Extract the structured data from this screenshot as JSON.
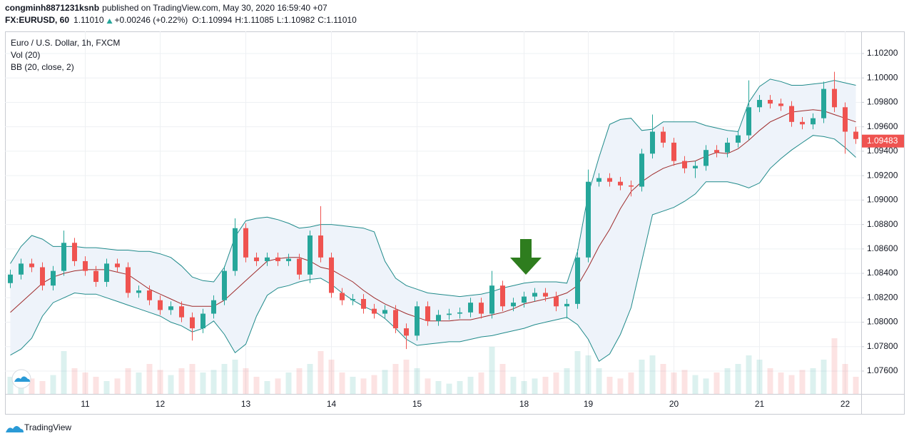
{
  "header": {
    "author": "congminh8871231ksnb",
    "published": "published on TradingView.com, May 30, 2020 16:59:40 +07",
    "symbol": "FX:EURUSD, 60",
    "last": "1.11010",
    "change": "+0.00246 (+0.22%)",
    "o_label": "O:",
    "o": "1.10994",
    "h_label": "H:",
    "h": "1.11085",
    "l_label": "L:",
    "l": "1.10982",
    "c_label": "C:",
    "c": "1.11010"
  },
  "chart_data": {
    "type": "candlestick",
    "title": "Euro / U.S. Dollar, 1h, FXCM",
    "categories": [
      null,
      null,
      null,
      null,
      null,
      null,
      null,
      "11",
      null,
      null,
      null,
      null,
      null,
      null,
      "12",
      null,
      null,
      null,
      null,
      null,
      null,
      null,
      "13",
      null,
      null,
      null,
      null,
      null,
      null,
      null,
      "14",
      null,
      null,
      null,
      null,
      null,
      null,
      null,
      "15",
      null,
      null,
      null,
      null,
      null,
      null,
      null,
      null,
      null,
      "18",
      null,
      null,
      null,
      null,
      null,
      "19",
      null,
      null,
      null,
      null,
      null,
      null,
      null,
      "20",
      null,
      null,
      null,
      null,
      null,
      null,
      null,
      "21",
      null,
      null,
      null,
      null,
      null,
      null,
      null,
      "22",
      null
    ],
    "open": [
      1.0832,
      1.0839,
      1.0848,
      1.0845,
      1.083,
      1.0842,
      1.0865,
      1.085,
      1.0842,
      1.0833,
      1.0848,
      1.0845,
      1.0824,
      1.0826,
      1.0818,
      1.081,
      1.0813,
      1.0804,
      1.0795,
      1.0807,
      1.0818,
      1.0842,
      1.0877,
      1.0853,
      1.085,
      1.0853,
      1.085,
      1.0852,
      1.0839,
      1.0871,
      1.0853,
      1.0824,
      1.0818,
      1.0819,
      1.0811,
      1.0807,
      1.081,
      1.0795,
      1.0789,
      1.0813,
      1.0801,
      1.0806,
      1.0807,
      1.0808,
      1.0816,
      1.0807,
      1.083,
      1.0813,
      1.0816,
      1.0821,
      1.0824,
      1.0821,
      1.0813,
      1.0815,
      1.0853,
      1.0915,
      1.0918,
      1.0915,
      1.0912,
      1.0911,
      1.0938,
      1.0956,
      1.0947,
      1.0932,
      1.0926,
      1.0928,
      1.0941,
      1.0939,
      1.0947,
      1.0953,
      1.0976,
      1.0982,
      1.0979,
      1.0977,
      1.0964,
      1.0962,
      1.0967,
      1.0991,
      1.0976,
      1.0956
    ],
    "high": [
      1.0843,
      1.0852,
      1.0852,
      1.0849,
      1.0846,
      1.0875,
      1.0869,
      1.0854,
      1.0846,
      1.0852,
      1.0852,
      1.0849,
      1.083,
      1.083,
      1.0822,
      1.0817,
      1.0817,
      1.0808,
      1.0811,
      1.0822,
      1.0846,
      1.0885,
      1.0881,
      1.0857,
      1.0857,
      1.0857,
      1.0856,
      1.0856,
      1.0875,
      1.0895,
      1.0857,
      1.0828,
      1.0823,
      1.0823,
      1.0815,
      1.0814,
      1.0814,
      1.0799,
      1.0817,
      1.0817,
      1.081,
      1.0811,
      1.0812,
      1.082,
      1.082,
      1.0842,
      1.0834,
      1.082,
      1.0825,
      1.0828,
      1.0828,
      1.0825,
      1.0819,
      1.086,
      1.0925,
      1.0922,
      1.0922,
      1.0919,
      1.0916,
      1.0942,
      1.097,
      1.096,
      1.0951,
      1.0936,
      1.0932,
      1.0945,
      1.0945,
      1.0951,
      1.0957,
      1.0998,
      1.0986,
      1.0986,
      1.0983,
      1.0981,
      1.0968,
      1.0971,
      1.0997,
      1.1005,
      1.098,
      1.096
    ],
    "low": [
      1.0828,
      1.0835,
      1.0841,
      1.0826,
      1.0826,
      1.0838,
      1.0846,
      1.0838,
      1.0829,
      1.0829,
      1.0841,
      1.082,
      1.082,
      1.0814,
      1.0806,
      1.0806,
      1.08,
      1.0785,
      1.0791,
      1.0803,
      1.0814,
      1.0838,
      1.0849,
      1.0846,
      1.0846,
      1.0846,
      1.0846,
      1.0835,
      1.0832,
      1.0849,
      1.082,
      1.0814,
      1.0814,
      1.0807,
      1.0803,
      1.0803,
      1.0791,
      1.0778,
      1.0785,
      1.0797,
      1.0797,
      1.0802,
      1.0803,
      1.0804,
      1.0803,
      1.0803,
      1.0809,
      1.0809,
      1.0812,
      1.0817,
      1.0817,
      1.0809,
      1.0803,
      1.0811,
      1.0849,
      1.0911,
      1.0911,
      1.0908,
      1.0903,
      1.0907,
      1.0934,
      1.0943,
      1.0928,
      1.0922,
      1.0918,
      1.0924,
      1.0935,
      1.0935,
      1.0943,
      1.0949,
      1.0972,
      1.0975,
      1.0973,
      1.096,
      1.0958,
      1.0958,
      1.0963,
      1.0972,
      1.0938,
      1.0946
    ],
    "close": [
      1.0839,
      1.0848,
      1.0845,
      1.083,
      1.0842,
      1.0865,
      1.085,
      1.0842,
      1.0833,
      1.0848,
      1.0845,
      1.0824,
      1.0826,
      1.0818,
      1.081,
      1.0813,
      1.0804,
      1.0795,
      1.0807,
      1.0818,
      1.0842,
      1.0877,
      1.0853,
      1.085,
      1.0853,
      1.085,
      1.0852,
      1.0839,
      1.0871,
      1.0853,
      1.0824,
      1.0818,
      1.0819,
      1.0811,
      1.0807,
      1.081,
      1.0795,
      1.0789,
      1.0813,
      1.0801,
      1.0806,
      1.0807,
      1.0808,
      1.0816,
      1.0807,
      1.083,
      1.0813,
      1.0816,
      1.0821,
      1.0824,
      1.0821,
      1.0813,
      1.0815,
      1.0853,
      1.0915,
      1.0918,
      1.0915,
      1.0912,
      1.0911,
      1.0938,
      1.0956,
      1.0947,
      1.0932,
      1.0926,
      1.0928,
      1.0941,
      1.0939,
      1.0947,
      1.0953,
      1.0976,
      1.0982,
      1.0979,
      1.0977,
      1.0964,
      1.0962,
      1.0967,
      1.0991,
      1.0976,
      1.0956,
      1.095
    ],
    "up_color": "#26a69a",
    "down_color": "#ef5350",
    "bollinger": {
      "name": "BB (20, close, 2)",
      "band_color": "#1f8a8a",
      "basis_color": "#9e2b2b",
      "fill": "#eef3fa",
      "upper": [
        1.0848,
        1.0862,
        1.0871,
        1.0868,
        1.0862,
        1.0862,
        1.0862,
        1.0861,
        1.0861,
        1.086,
        1.0859,
        1.0859,
        1.0858,
        1.0858,
        1.0856,
        1.0853,
        1.0846,
        1.0837,
        1.0834,
        1.0833,
        1.0845,
        1.087,
        1.0883,
        1.0885,
        1.0886,
        1.0884,
        1.0881,
        1.0877,
        1.0878,
        1.088,
        1.088,
        1.0879,
        1.0878,
        1.0877,
        1.0874,
        1.085,
        1.0836,
        1.083,
        1.0827,
        1.0824,
        1.0823,
        1.0822,
        1.0821,
        1.0822,
        1.0823,
        1.0825,
        1.0828,
        1.083,
        1.0832,
        1.0833,
        1.0833,
        1.0833,
        1.0832,
        1.0858,
        1.0905,
        1.0935,
        1.0962,
        1.0966,
        1.0967,
        1.0957,
        1.0958,
        1.0964,
        1.0964,
        1.0964,
        1.0964,
        1.0961,
        1.0959,
        1.0957,
        1.0956,
        1.098,
        1.0993,
        1.0999,
        1.0997,
        1.0994,
        1.0994,
        1.0995,
        1.0996,
        1.0998,
        1.0996,
        1.0994
      ],
      "basis": [
        1.0808,
        1.0816,
        1.0824,
        1.0832,
        1.0837,
        1.084,
        1.0842,
        1.0843,
        1.0843,
        1.0843,
        1.0841,
        1.0839,
        1.0833,
        1.0827,
        1.0823,
        1.0819,
        1.0815,
        1.0813,
        1.0813,
        1.0813,
        1.0818,
        1.0826,
        1.0834,
        1.0842,
        1.085,
        1.0852,
        1.0853,
        1.0853,
        1.085,
        1.0845,
        1.0843,
        1.0838,
        1.0833,
        1.0826,
        1.082,
        1.0815,
        1.0811,
        1.0807,
        1.0804,
        1.0801,
        1.0801,
        1.0801,
        1.0802,
        1.0802,
        1.0804,
        1.0806,
        1.0808,
        1.0811,
        1.0815,
        1.0817,
        1.0819,
        1.0821,
        1.0824,
        1.083,
        1.0845,
        1.0862,
        1.0876,
        1.0893,
        1.0907,
        1.0915,
        1.0921,
        1.0926,
        1.0929,
        1.0931,
        1.0932,
        1.0936,
        1.0939,
        1.0938,
        1.0942,
        1.0949,
        1.0957,
        1.0964,
        1.0968,
        1.0972,
        1.0973,
        1.0974,
        1.0973,
        1.097,
        1.0967,
        1.0964
      ],
      "lower": [
        1.0773,
        1.0778,
        1.0787,
        1.0805,
        1.0816,
        1.082,
        1.0824,
        1.0823,
        1.0823,
        1.082,
        1.0817,
        1.0814,
        1.0811,
        1.0808,
        1.0805,
        1.08,
        1.0797,
        1.0792,
        1.0795,
        1.0801,
        1.079,
        1.0775,
        1.0782,
        1.0805,
        1.0822,
        1.0828,
        1.083,
        1.0833,
        1.0835,
        1.0836,
        1.0831,
        1.0824,
        1.0818,
        1.0813,
        1.0809,
        1.0803,
        1.0795,
        1.0786,
        1.0781,
        1.0782,
        1.0783,
        1.0784,
        1.0784,
        1.0786,
        1.0788,
        1.0789,
        1.0791,
        1.0793,
        1.0795,
        1.0798,
        1.08,
        1.0802,
        1.0804,
        1.0798,
        1.0786,
        1.0768,
        1.0774,
        1.079,
        1.0812,
        1.085,
        1.0888,
        1.0891,
        1.0894,
        1.0899,
        1.0905,
        1.0915,
        1.0915,
        1.0915,
        1.0913,
        1.091,
        1.0914,
        1.0926,
        1.0934,
        1.0941,
        1.0947,
        1.0953,
        1.0952,
        1.095,
        1.0943,
        1.0935
      ]
    },
    "volume": {
      "name": "Vol (20)",
      "ylim": [
        0,
        100
      ],
      "values": [
        20,
        25,
        18,
        15,
        22,
        50,
        30,
        25,
        20,
        15,
        18,
        30,
        25,
        35,
        28,
        22,
        30,
        35,
        25,
        28,
        35,
        40,
        30,
        20,
        15,
        18,
        25,
        30,
        35,
        50,
        40,
        25,
        20,
        18,
        22,
        28,
        35,
        40,
        30,
        18,
        15,
        12,
        15,
        20,
        25,
        55,
        35,
        20,
        15,
        18,
        20,
        25,
        30,
        50,
        45,
        30,
        20,
        18,
        25,
        40,
        45,
        35,
        25,
        28,
        22,
        18,
        25,
        30,
        35,
        45,
        40,
        30,
        25,
        22,
        28,
        30,
        40,
        65,
        35,
        20
      ]
    },
    "ylim": [
      1.07413,
      1.10381
    ],
    "yticks": [
      {
        "value": 1.076,
        "label": "1.07600"
      },
      {
        "value": 1.078,
        "label": "1.07800"
      },
      {
        "value": 1.08,
        "label": "1.08000"
      },
      {
        "value": 1.082,
        "label": "1.08200"
      },
      {
        "value": 1.084,
        "label": "1.08400"
      },
      {
        "value": 1.086,
        "label": "1.08600"
      },
      {
        "value": 1.088,
        "label": "1.08800"
      },
      {
        "value": 1.09,
        "label": "1.09000"
      },
      {
        "value": 1.092,
        "label": "1.09200"
      },
      {
        "value": 1.094,
        "label": "1.09400"
      },
      {
        "value": 1.096,
        "label": "1.09600"
      },
      {
        "value": 1.098,
        "label": "1.09800"
      },
      {
        "value": 1.1,
        "label": "1.10000"
      },
      {
        "value": 1.102,
        "label": "1.10200"
      }
    ],
    "last_price": 1.09483,
    "last_price_color": "#ef5350",
    "grid": true
  },
  "footer": {
    "brand": "TradingView"
  }
}
